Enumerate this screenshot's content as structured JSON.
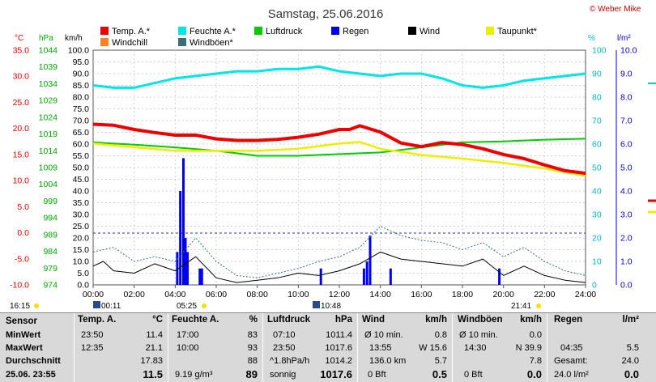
{
  "header": {
    "title": "Samstag, 25.06.2016",
    "copyright": "© Weber Mike"
  },
  "axes": {
    "left_units": {
      "temp": "°C",
      "hpa": "hPa",
      "kmh": "km/h"
    },
    "right_units": {
      "pct": "%",
      "rain": "l/m²"
    },
    "temp_ticks": [
      "35.0",
      "30.0",
      "25.0",
      "20.0",
      "15.0",
      "10.0",
      "5.0",
      "0.0",
      "-5.0",
      "-10.0"
    ],
    "hpa_ticks": [
      "1044",
      "1039",
      "1034",
      "1029",
      "1024",
      "1019",
      "1014",
      "1009",
      "1004",
      "999",
      "994",
      "989",
      "984",
      "979",
      "974"
    ],
    "kmh_ticks": [
      "100.0",
      "95.0",
      "90.0",
      "85.0",
      "80.0",
      "75.0",
      "70.0",
      "65.0",
      "60.0",
      "55.0",
      "50.0",
      "45.0",
      "40.0",
      "35.0",
      "30.0",
      "25.0",
      "20.0",
      "15.0",
      "10.0",
      "5.0",
      "0.0"
    ],
    "pct_ticks": [
      "100",
      "90",
      "80",
      "70",
      "60",
      "50",
      "40",
      "30",
      "20",
      "10",
      "0"
    ],
    "rain_ticks": [
      "10.0",
      "9.0",
      "8.0",
      "7.0",
      "6.0",
      "5.0",
      "4.0",
      "3.0",
      "2.0",
      "1.0",
      "0.0"
    ],
    "time_ticks": [
      "00:00",
      "02:00",
      "04:00",
      "06:00",
      "08:00",
      "10:00",
      "12:00",
      "14:00",
      "16:00",
      "18:00",
      "20:00",
      "22:00",
      "24:00"
    ]
  },
  "legend": [
    {
      "label": "Temp. A.*",
      "color": "#ee0000"
    },
    {
      "label": "Feuchte A.*",
      "color": "#00e5e5"
    },
    {
      "label": "Luftdruck",
      "color": "#00cc00"
    },
    {
      "label": "Regen",
      "color": "#0000ee"
    },
    {
      "label": "Wind",
      "color": "#000000"
    },
    {
      "label": "Taupunkt*",
      "color": "#eeee00"
    },
    {
      "label": "Windchill",
      "color": "#ff7f27"
    },
    {
      "label": "Windböen*",
      "color": "#3c6e78"
    }
  ],
  "sun": {
    "rise1": "16:15",
    "set_marker": "00:11",
    "sunrise": "05:25",
    "moon": "10:48",
    "sunset": "21:41"
  },
  "chart_data": {
    "type": "line",
    "x_unit": "hours",
    "temp_c": {
      "x": [
        0,
        1,
        2,
        3,
        4,
        5,
        6,
        7,
        8,
        9,
        10,
        11,
        12,
        12.5,
        13,
        14,
        15,
        16,
        17,
        18,
        19,
        20,
        21,
        22,
        23,
        24
      ],
      "y": [
        20.8,
        20.6,
        19.8,
        19.2,
        18.7,
        18.7,
        18.0,
        17.7,
        17.7,
        17.9,
        18.3,
        18.9,
        19.8,
        19.8,
        20.5,
        19.3,
        17.2,
        16.5,
        17.3,
        16.9,
        16.1,
        15.0,
        14.2,
        13.0,
        11.9,
        11.4
      ]
    },
    "dewpoint_c": {
      "x": [
        0,
        2,
        4,
        6,
        8,
        10,
        12,
        13,
        14,
        16,
        18,
        20,
        22,
        24
      ],
      "y": [
        17.1,
        16.4,
        15.7,
        15.7,
        15.7,
        16.1,
        17.1,
        17.4,
        16.1,
        14.9,
        14.2,
        13.4,
        12.3,
        10.9
      ]
    },
    "humidity_pct": {
      "x": [
        0,
        1,
        2,
        3,
        4,
        5,
        6,
        7,
        8,
        9,
        10,
        11,
        12,
        13,
        14,
        15,
        16,
        17,
        18,
        19,
        20,
        21,
        22,
        23,
        24
      ],
      "y": [
        85,
        84,
        84,
        86,
        88,
        89,
        90,
        91,
        91,
        92,
        92,
        93,
        91,
        90,
        89,
        90,
        90,
        88,
        85,
        84,
        85,
        87,
        88,
        89,
        90
      ]
    },
    "pressure_hpa": {
      "x": [
        0,
        2,
        4,
        6,
        8,
        10,
        12,
        14,
        16,
        18,
        20,
        22,
        24
      ],
      "y": [
        1016.5,
        1015.8,
        1015.0,
        1014.0,
        1012.5,
        1012.5,
        1013.0,
        1013.5,
        1015.0,
        1016.5,
        1016.8,
        1017.3,
        1017.6
      ]
    },
    "wind_kmh": {
      "x": [
        0,
        0.5,
        1,
        2,
        3,
        4,
        5,
        6,
        7,
        8,
        9,
        10,
        11,
        12,
        13,
        14,
        15,
        16,
        17,
        18,
        19,
        20,
        21,
        22,
        23,
        24
      ],
      "y": [
        8,
        10,
        6,
        5,
        9,
        6,
        12,
        3,
        1,
        2,
        3,
        5,
        4,
        6,
        9,
        14,
        11,
        10,
        9,
        8,
        11,
        4,
        8,
        4,
        2,
        1
      ]
    },
    "gust_kmh": {
      "x": [
        0,
        1,
        2,
        3,
        4,
        5,
        6,
        7,
        8,
        9,
        10,
        11,
        12,
        13,
        14,
        15,
        16,
        17,
        18,
        19,
        20,
        21,
        22,
        23,
        24
      ],
      "y": [
        14,
        16,
        10,
        12,
        10,
        20,
        10,
        4,
        3,
        5,
        7,
        10,
        12,
        16,
        25,
        21,
        19,
        18,
        15,
        18,
        12,
        16,
        10,
        6,
        4
      ]
    },
    "rain_mm": {
      "x": [
        4.1,
        4.25,
        4.4,
        4.5,
        4.6,
        5.2,
        5.3,
        11.1,
        13.2,
        13.35,
        13.5,
        14.5,
        19.8
      ],
      "y": [
        1.4,
        4.0,
        5.4,
        2.0,
        1.4,
        0.7,
        0.7,
        0.7,
        0.7,
        1.0,
        2.1,
        0.7,
        0.7
      ]
    }
  },
  "stats": {
    "labels": {
      "sensor": "Sensor",
      "min": "MinWert",
      "max": "MaxWert",
      "avg": "Durchschnitt",
      "now": "25.06. 23:55"
    },
    "temp": {
      "title": "Temp. A.",
      "unit": "°C",
      "min_time": "23:50",
      "min": "11.4",
      "max_time": "12:35",
      "max": "21.1",
      "avg": "17.83",
      "now": "11.5"
    },
    "hum": {
      "title": "Feuchte A.",
      "unit": "%",
      "min_time": "17:00",
      "min": "83",
      "max_time": "10:00",
      "max": "93",
      "avg": "88",
      "abs": "9.19 g/m³",
      "now": "89"
    },
    "press": {
      "title": "Luftdruck",
      "unit": "hPa",
      "min_time": "07:10",
      "min": "1011.4",
      "max_time": "23:50",
      "max": "1017.6",
      "trend": "^1.8hPa/h",
      "avg": "1014.2",
      "state": "sonnig",
      "now": "1017.6"
    },
    "wind": {
      "title": "Wind",
      "unit": "km/h",
      "r1a": "Ø 10 min.",
      "r1b": "0.8",
      "r2a": "13:55",
      "r2b": "W 15.6",
      "r3a": "136.0 km",
      "r3b": "5.7",
      "r4a": "0 Bft",
      "r4b": "0.5"
    },
    "gust": {
      "title": "Windböen",
      "unit": "km/h",
      "r1a": "Ø 10 min.",
      "r1b": "0.0",
      "r2a": "14:30",
      "r2b": "N 39.9",
      "r3b": "7.8",
      "r4a": "0 Bft",
      "r4b": "0.0"
    },
    "rain": {
      "title": "Regen",
      "unit": "l/m²",
      "r2a": "04:35",
      "r2b": "5.5",
      "r3a": "Gesamt:",
      "r3b": "24.0",
      "r4a": "24.0 l/m²",
      "r4b": "0.0"
    }
  }
}
